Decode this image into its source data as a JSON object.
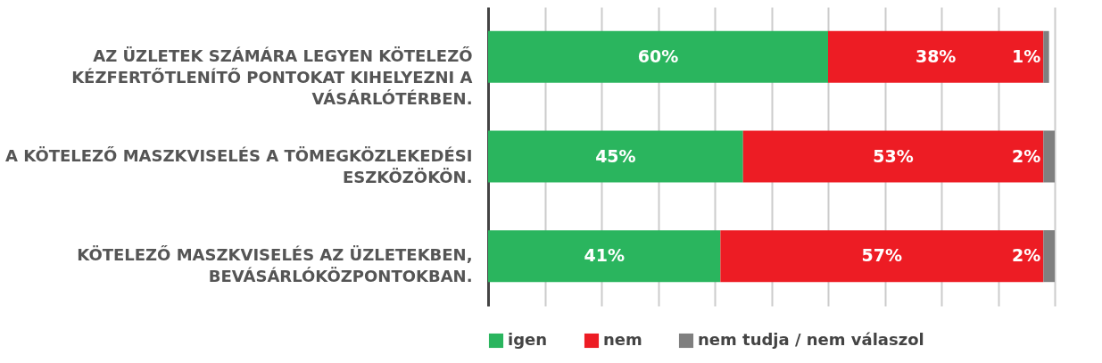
{
  "chart_data": {
    "type": "bar",
    "orientation": "horizontal",
    "stacked": true,
    "categories": [
      "AZ ÜZLETEK SZÁMÁRA LEGYEN KÖTELEZŐ KÉZFERTŐTLENÍTŐ PONTOKAT KIHELYEZNI A VÁSÁRLÓTÉRBEN.",
      "A KÖTELEZŐ MASZKVISELÉS A TÖMEGKÖZLEKEDÉSI ESZKÖZÖKÖN.",
      "KÖTELEZŐ MASZKVISELÉS AZ ÜZLETEKBEN, BEVÁSÁRLÓKÖZPONTOKBAN."
    ],
    "series": [
      {
        "name": "igen",
        "color": "#2ab55e",
        "values": [
          60,
          45,
          41
        ],
        "value_labels": [
          "60%",
          "45%",
          "41%"
        ]
      },
      {
        "name": "nem",
        "color": "#ed1c24",
        "values": [
          38,
          53,
          57
        ],
        "value_labels": [
          "38%",
          "53%",
          "57%"
        ]
      },
      {
        "name": "nem tudja / nem válaszol",
        "color": "#7f7f7f",
        "values": [
          1,
          2,
          2
        ],
        "value_labels": [
          "1%",
          "2%",
          "2%"
        ]
      }
    ],
    "tick_labels": "y",
    "grid": "x",
    "legend": "bottom"
  }
}
